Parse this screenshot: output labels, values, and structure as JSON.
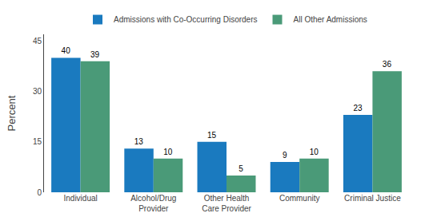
{
  "chart_data": {
    "type": "bar",
    "categories": [
      "Individual",
      "Alcohol/Drug\nProvider",
      "Other Health\nCare Provider",
      "Community",
      "Criminal Justice"
    ],
    "series": [
      {
        "name": "Admissions with Co-Occurring Disorders",
        "values": [
          40,
          13,
          15,
          9,
          23
        ],
        "color": "#1a7abf"
      },
      {
        "name": "All Other Admissions",
        "values": [
          39,
          10,
          5,
          10,
          36
        ],
        "color": "#4a9a78"
      }
    ],
    "ylabel": "Percent",
    "ylim": [
      0,
      47
    ],
    "yticks": [
      0,
      15,
      30,
      45
    ],
    "grid": false,
    "legend": "top",
    "data_labels": true
  }
}
